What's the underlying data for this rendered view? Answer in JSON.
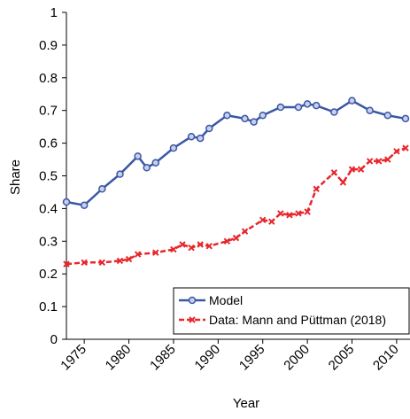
{
  "chart_data": {
    "type": "line",
    "x_label": "Year",
    "y_label": "Share",
    "xlim": [
      1973,
      2011.5
    ],
    "ylim": [
      0,
      1
    ],
    "xticks": [
      1975,
      1980,
      1985,
      1990,
      1995,
      2000,
      2005,
      2010
    ],
    "yticks": [
      0,
      0.1,
      0.2,
      0.3,
      0.4,
      0.5,
      0.6,
      0.7,
      0.8,
      0.9,
      1
    ],
    "legend": "lower right",
    "series": [
      {
        "name": "Model",
        "color": "#3a56a6",
        "dash": false,
        "x": [
          1973,
          1975,
          1977,
          1979,
          1981,
          1982,
          1983,
          1985,
          1987,
          1988,
          1989,
          1991,
          1993,
          1994,
          1995,
          1997,
          1999,
          2000,
          2001,
          2003,
          2005,
          2007,
          2009,
          2011
        ],
        "values": [
          0.42,
          0.41,
          0.46,
          0.505,
          0.56,
          0.525,
          0.54,
          0.585,
          0.62,
          0.615,
          0.645,
          0.685,
          0.675,
          0.665,
          0.685,
          0.71,
          0.71,
          0.72,
          0.715,
          0.695,
          0.73,
          0.7,
          0.685,
          0.675
        ]
      },
      {
        "name": "Data: Mann and Püttman (2018)",
        "color": "#e8262b",
        "dash": true,
        "x": [
          1973,
          1975,
          1977,
          1979,
          1980,
          1981,
          1983,
          1985,
          1986,
          1987,
          1988,
          1989,
          1991,
          1992,
          1993,
          1995,
          1996,
          1997,
          1998,
          1999,
          2000,
          2001,
          2003,
          2004,
          2005,
          2006,
          2007,
          2008,
          2009,
          2010,
          2011
        ],
        "values": [
          0.23,
          0.235,
          0.235,
          0.24,
          0.245,
          0.26,
          0.265,
          0.275,
          0.29,
          0.28,
          0.29,
          0.285,
          0.3,
          0.31,
          0.33,
          0.365,
          0.36,
          0.385,
          0.38,
          0.385,
          0.39,
          0.46,
          0.51,
          0.48,
          0.52,
          0.52,
          0.545,
          0.545,
          0.55,
          0.575,
          0.585
        ]
      }
    ]
  }
}
